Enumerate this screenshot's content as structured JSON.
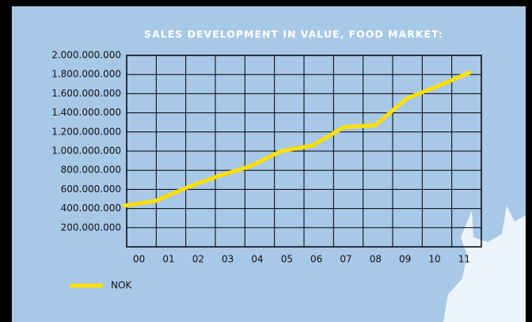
{
  "chart_data": {
    "type": "line",
    "title": "SALES DEVELOPMENT IN VALUE, FOOD MARKET:",
    "categories": [
      "00",
      "01",
      "02",
      "03",
      "04",
      "05",
      "06",
      "07",
      "08",
      "09",
      "10",
      "11"
    ],
    "series": [
      {
        "name": "NOK",
        "color": "#ffe000",
        "values": [
          430000000,
          480000000,
          620000000,
          740000000,
          840000000,
          1000000000,
          1060000000,
          1250000000,
          1270000000,
          1550000000,
          1680000000,
          1820000000
        ]
      }
    ],
    "ylim": [
      0,
      2000000000
    ],
    "yticks": [
      {
        "value": 200000000,
        "label": "200.000.000"
      },
      {
        "value": 400000000,
        "label": "400.000.000"
      },
      {
        "value": 600000000,
        "label": "600.000.000"
      },
      {
        "value": 800000000,
        "label": "800.000.000"
      },
      {
        "value": 1000000000,
        "label": "1.000.000.000"
      },
      {
        "value": 1200000000,
        "label": "1.200.000.000"
      },
      {
        "value": 1400000000,
        "label": "1.400.000.000"
      },
      {
        "value": 1600000000,
        "label": "1.600.000.000"
      },
      {
        "value": 1800000000,
        "label": "1.800.000.000"
      },
      {
        "value": 2000000000,
        "label": "2.000.000.000"
      }
    ],
    "grid": true
  }
}
